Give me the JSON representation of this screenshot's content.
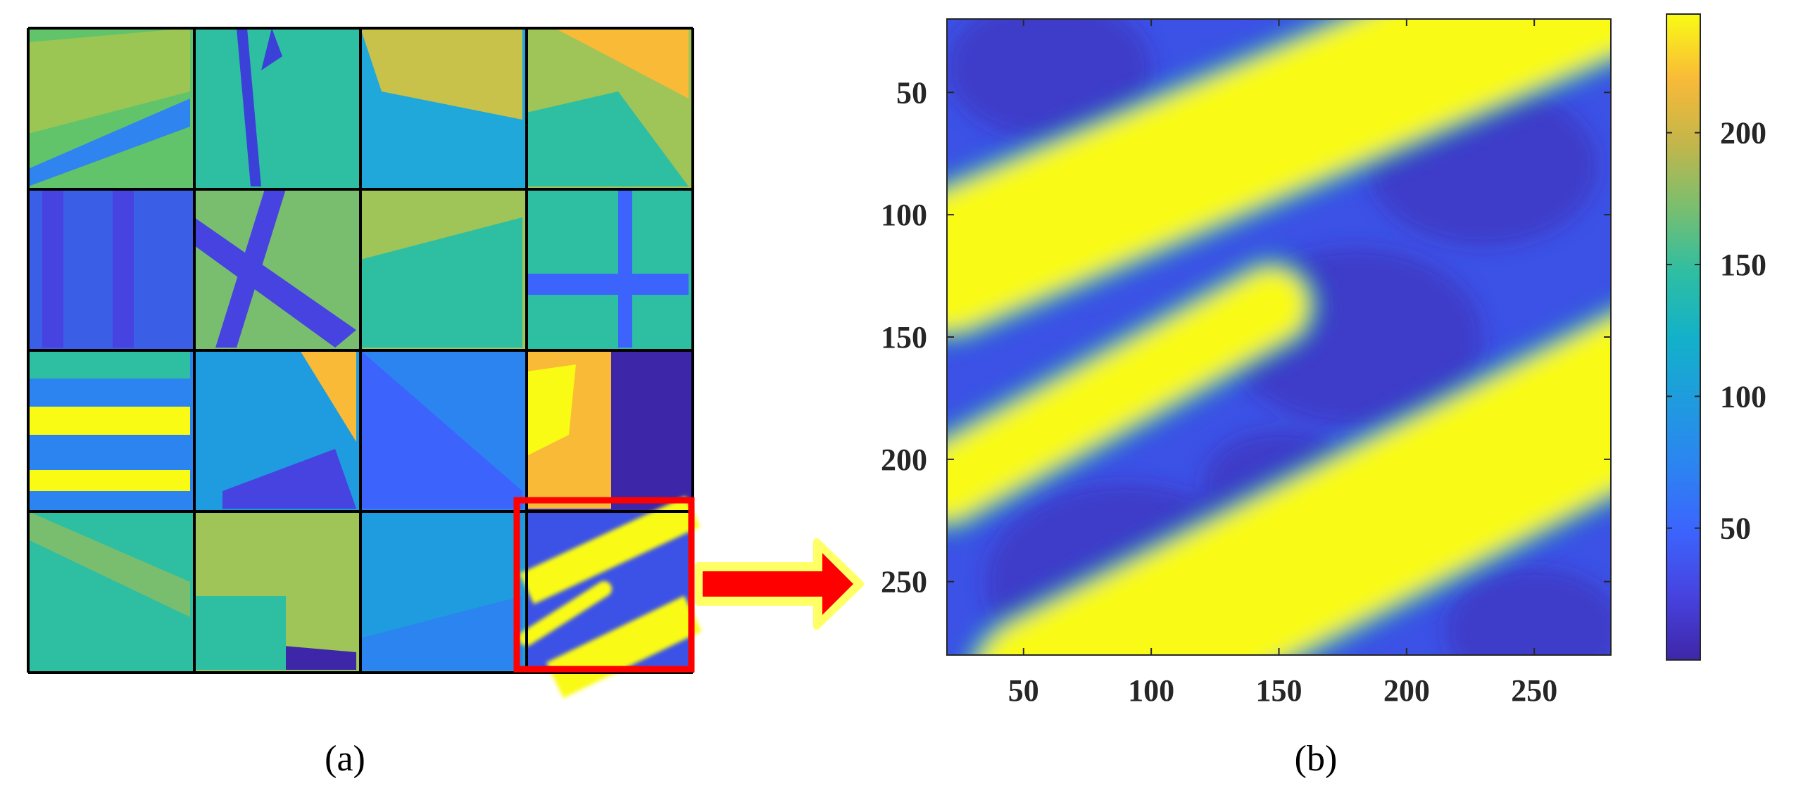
{
  "panel_a": {
    "caption": "(a)",
    "grid_rows": 4,
    "grid_cols": 4,
    "highlighted_tile": {
      "row": 3,
      "col": 3
    },
    "highlight_color": "#ff0000",
    "arrow_color": "#ff0000",
    "arrow_outline_color": "#ffff66"
  },
  "panel_b": {
    "caption": "(b)"
  },
  "chart_data": {
    "type": "heatmap",
    "title": "",
    "xlabel": "",
    "ylabel": "",
    "xlim": [
      20,
      280
    ],
    "ylim": [
      280,
      20
    ],
    "xticks": [
      50,
      100,
      150,
      200,
      250
    ],
    "yticks": [
      50,
      100,
      150,
      200,
      250
    ],
    "colorbar": {
      "colormap": "parula",
      "range": [
        0,
        245
      ],
      "ticks": [
        50,
        100,
        150,
        200
      ]
    },
    "colors": {
      "low": "#3e26a8",
      "mid": "#13beb8",
      "high": "#f9fb15"
    },
    "bright_bands": [
      {
        "id": "upper-band",
        "value": 240,
        "x_start": 20,
        "y_start": 120,
        "x_end": 280,
        "y_end": 5,
        "half_width": 26
      },
      {
        "id": "finger",
        "value": 240,
        "x_start": 20,
        "y_start": 210,
        "x_end": 147,
        "y_end": 137,
        "half_width": 14
      },
      {
        "id": "lower-band",
        "value": 240,
        "x_start": 60,
        "y_start": 295,
        "x_end": 295,
        "y_end": 170,
        "half_width": 30
      }
    ],
    "background_value": 45
  }
}
